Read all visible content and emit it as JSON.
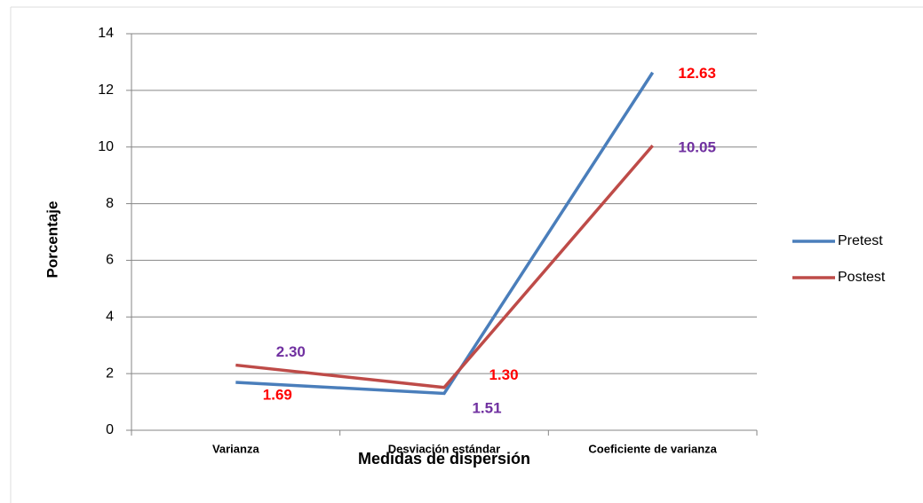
{
  "chart_data": {
    "type": "line",
    "categories": [
      "Varianza",
      "Desviación estándar",
      "Coeficiente de varianza"
    ],
    "series": [
      {
        "name": "Pretest",
        "color": "#4a7ebb",
        "label_color": "#ff0000",
        "values": [
          1.69,
          1.3,
          12.63
        ],
        "value_labels": [
          "1.69",
          "1.30",
          "12.63"
        ]
      },
      {
        "name": "Postest",
        "color": "#be4b48",
        "label_color": "#7030a0",
        "values": [
          2.3,
          1.51,
          10.05
        ],
        "value_labels": [
          "2.30",
          "1.51",
          "10.05"
        ]
      }
    ],
    "ylim": [
      0,
      14
    ],
    "yticks": [
      0,
      2,
      4,
      6,
      8,
      10,
      12,
      14
    ],
    "grid": true,
    "ylabel": "Porcentaje",
    "xlabel": "Medidas de dispersión",
    "legend": "right"
  }
}
